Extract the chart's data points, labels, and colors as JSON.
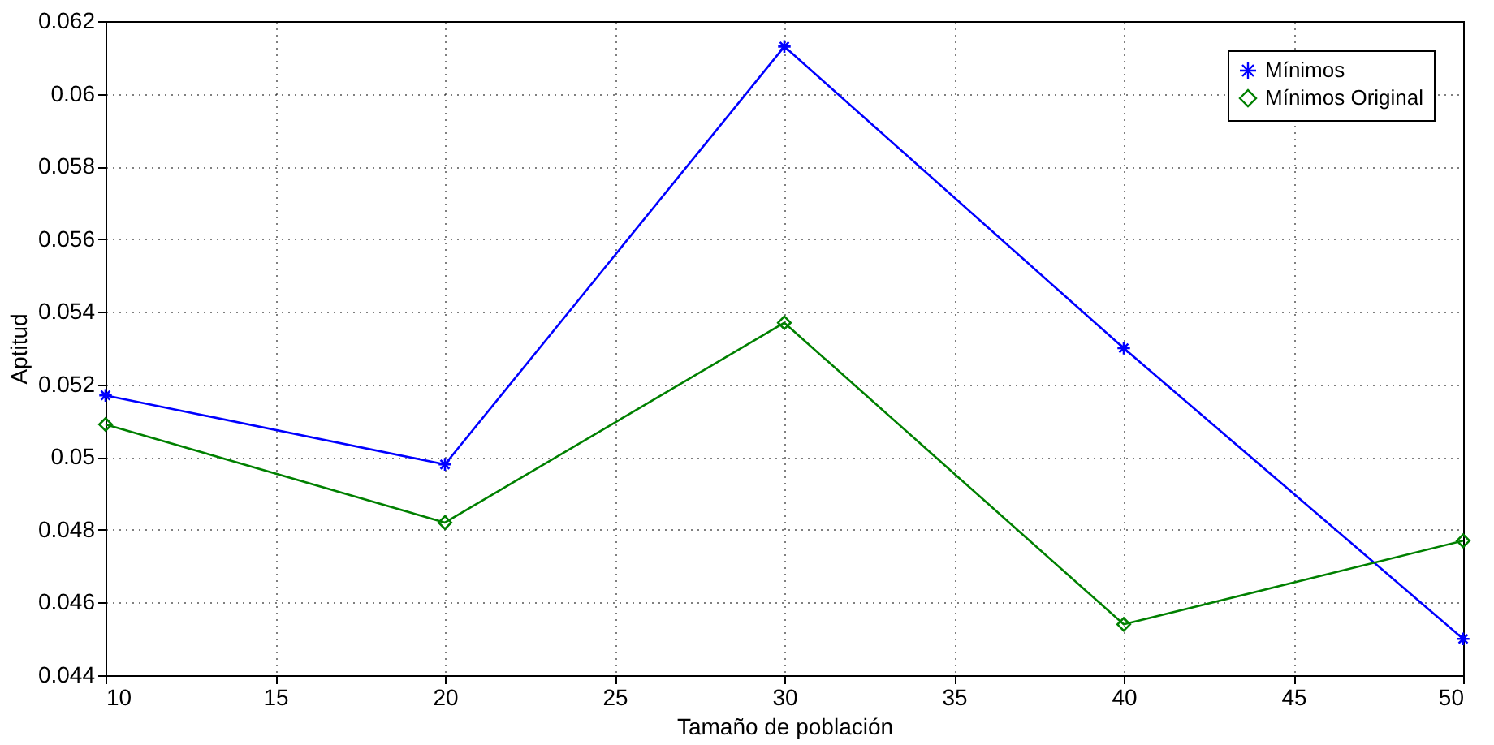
{
  "chart_data": {
    "type": "line",
    "xlabel": "Tamaño de población",
    "ylabel": "Aptitud",
    "x": [
      10,
      20,
      30,
      40,
      50
    ],
    "series": [
      {
        "name": "Mínimos",
        "color": "#0000ff",
        "marker": "cross",
        "values": [
          0.0517,
          0.0498,
          0.0613,
          0.053,
          0.045
        ]
      },
      {
        "name": "Mínimos Original",
        "color": "#008000",
        "marker": "diamond",
        "values": [
          0.0509,
          0.0482,
          0.0537,
          0.0454,
          0.0477
        ]
      }
    ],
    "xlim": [
      10,
      50
    ],
    "xticks": [
      10,
      15,
      20,
      25,
      30,
      35,
      40,
      45,
      50
    ],
    "ylim": [
      0.044,
      0.062
    ],
    "yticks": [
      0.044,
      0.046,
      0.048,
      0.05,
      0.052,
      0.054,
      0.056,
      0.058,
      0.06,
      0.062
    ],
    "grid": true,
    "legend": "top right",
    "line_style": "solid"
  }
}
